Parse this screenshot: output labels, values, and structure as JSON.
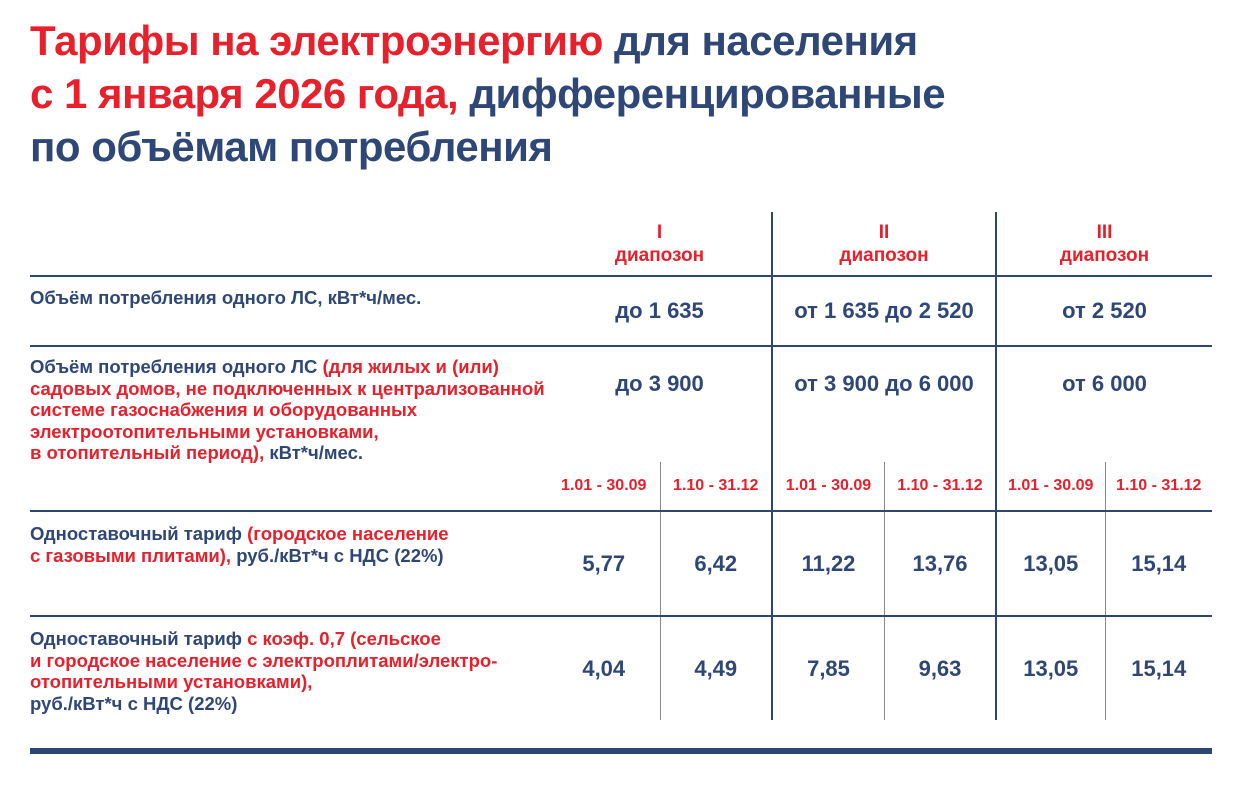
{
  "colors": {
    "red": "#e7202c",
    "blue": "#2e4777",
    "line": "#2e4674",
    "gray": "#8a8a8a"
  },
  "title": {
    "line1_red": "Тарифы на электроэнергию ",
    "line1_blue": "для населения",
    "line2_red": "с 1 января 2026 года, ",
    "line2_blue": "дифференцированные",
    "line3_blue": "по объёмам потребления"
  },
  "table": {
    "header": {
      "g1_numeral": "I",
      "g1_label": "диапозон",
      "g2_numeral": "II",
      "g2_label": "диапозон",
      "g3_numeral": "III",
      "g3_label": "диапозон"
    },
    "row_volume": {
      "label": "Объём потребления одного ЛС, кВт*ч/мес.",
      "v1": "до 1 635",
      "v2": "от 1 635 до 2 520",
      "v3": "от 2 520"
    },
    "row_volume_heating": {
      "label_l1_blue": "Объём потребления одного ЛС ",
      "label_l1_red": "(для жилых и (или)",
      "label_l2_red": "садовых домов, не подключенных к централизованной",
      "label_l3_red": "системе газоснабжения и оборудованных",
      "label_l4_red": "электроотопительными установками,",
      "label_l5_red": "в отопительный период), ",
      "label_l5_blue": "кВт*ч/мес.",
      "v1": "до 3 900",
      "v2": "от 3 900 до 6 000",
      "v3": "от 6 000"
    },
    "periods": {
      "p1": "1.01 - 30.09",
      "p2": "1.10 - 31.12",
      "p3": "1.01 - 30.09",
      "p4": "1.10 - 31.12",
      "p5": "1.01 - 30.09",
      "p6": "1.10 - 31.12"
    },
    "row_tariff_gas": {
      "label_l1_blue": "Одноставочный тариф ",
      "label_l1_red": "(городское население",
      "label_l2_red": "с газовыми плитами), ",
      "label_l2_blue": "руб./кВт*ч с НДС (22%)",
      "v1": "5,77",
      "v2": "6,42",
      "v3": "11,22",
      "v4": "13,76",
      "v5": "13,05",
      "v6": "15,14"
    },
    "row_tariff_electric": {
      "label_l1_blue": "Одноставочный тариф ",
      "label_l1_red": "с коэф. 0,7 (сельское",
      "label_l2_red": "и городское население с электроплитами/электро-",
      "label_l3_red": "отопительными установками),",
      "label_l4_blue": "руб./кВт*ч с НДС (22%)",
      "v1": "4,04",
      "v2": "4,49",
      "v3": "7,85",
      "v4": "9,63",
      "v5": "13,05",
      "v6": "15,14"
    }
  }
}
